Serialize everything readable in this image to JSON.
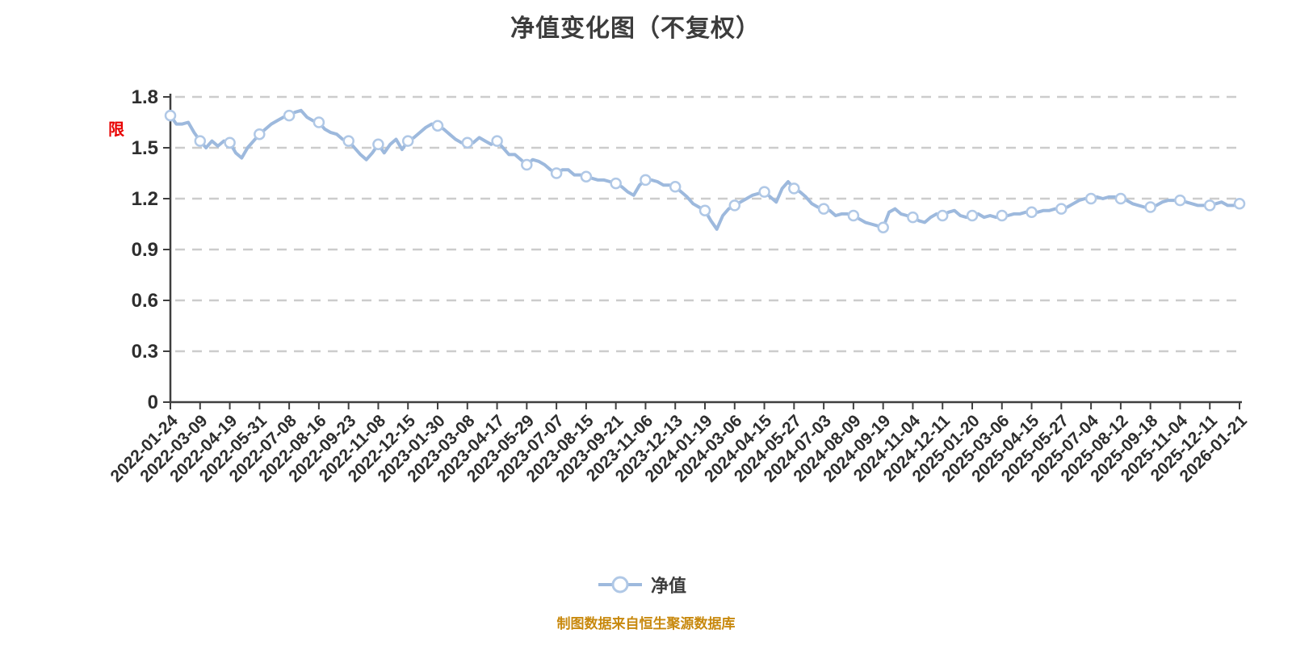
{
  "title": "净值变化图（不复权）",
  "y_axis_side_label": "限",
  "legend": {
    "series_label": "净值"
  },
  "source_note": "制图数据来自恒生聚源数据库",
  "colors": {
    "line": "#9db9dd",
    "marker_fill": "#ffffff",
    "marker_stroke": "#b0c8e6",
    "axis": "#3f3f3f",
    "grid": "#cccccc",
    "tick_label": "#2e2e2e",
    "title": "#3c3c3c",
    "side_label": "#e80000",
    "source": "#c8890e"
  },
  "chart_data": {
    "type": "line",
    "title": "净值变化图（不复权）",
    "xlabel": "",
    "ylabel": "",
    "ylim": [
      0,
      1.8
    ],
    "y_ticks": [
      0,
      0.3,
      0.6,
      0.9,
      1.2,
      1.5,
      1.8
    ],
    "y_tick_labels": [
      "0",
      "0.3",
      "0.6",
      "0.9",
      "1.2",
      "1.5",
      "1.8"
    ],
    "grid": "horizontal-dashed",
    "legend_position": "bottom-center",
    "x_tick_labels": [
      "2022-01-24",
      "2022-03-09",
      "2022-04-19",
      "2022-05-31",
      "2022-07-08",
      "2022-08-16",
      "2022-09-23",
      "2022-11-08",
      "2022-12-15",
      "2023-01-30",
      "2023-03-08",
      "2023-04-17",
      "2023-05-29",
      "2023-07-07",
      "2023-08-15",
      "2023-09-21",
      "2023-11-06",
      "2023-12-13",
      "2024-01-19",
      "2024-03-06",
      "2024-04-15",
      "2024-05-27",
      "2024-07-03",
      "2024-08-09",
      "2024-09-19",
      "2024-11-04",
      "2024-12-11",
      "2025-01-20",
      "2025-03-06",
      "2025-04-15",
      "2025-05-27",
      "2025-07-04",
      "2025-08-12",
      "2025-09-18",
      "2025-11-04",
      "2025-12-11",
      "2026-01-21"
    ],
    "marker_every": 5,
    "tick_point_values": [
      1.69,
      1.54,
      1.53,
      1.58,
      1.69,
      1.65,
      1.54,
      1.52,
      1.54,
      1.63,
      1.53,
      1.54,
      1.4,
      1.35,
      1.33,
      1.29,
      1.31,
      1.27,
      1.13,
      1.16,
      1.24,
      1.26,
      1.14,
      1.1,
      1.03,
      1.09,
      1.1,
      1.1,
      1.1,
      1.12,
      1.14,
      1.2,
      1.2,
      1.15,
      1.19,
      1.16,
      1.17
    ],
    "series": [
      {
        "name": "净值",
        "values": [
          1.69,
          1.64,
          1.64,
          1.65,
          1.59,
          1.54,
          1.5,
          1.54,
          1.51,
          1.54,
          1.53,
          1.47,
          1.44,
          1.5,
          1.54,
          1.58,
          1.61,
          1.64,
          1.66,
          1.68,
          1.69,
          1.71,
          1.72,
          1.68,
          1.66,
          1.65,
          1.61,
          1.59,
          1.58,
          1.55,
          1.54,
          1.5,
          1.46,
          1.43,
          1.47,
          1.52,
          1.47,
          1.52,
          1.55,
          1.49,
          1.54,
          1.56,
          1.59,
          1.62,
          1.64,
          1.63,
          1.61,
          1.58,
          1.55,
          1.53,
          1.53,
          1.53,
          1.56,
          1.54,
          1.52,
          1.54,
          1.5,
          1.46,
          1.46,
          1.43,
          1.4,
          1.43,
          1.42,
          1.4,
          1.37,
          1.35,
          1.37,
          1.37,
          1.34,
          1.34,
          1.33,
          1.32,
          1.31,
          1.31,
          1.3,
          1.29,
          1.27,
          1.24,
          1.22,
          1.28,
          1.31,
          1.31,
          1.3,
          1.28,
          1.28,
          1.27,
          1.24,
          1.21,
          1.17,
          1.15,
          1.13,
          1.07,
          1.02,
          1.1,
          1.14,
          1.16,
          1.18,
          1.2,
          1.22,
          1.23,
          1.24,
          1.21,
          1.18,
          1.26,
          1.3,
          1.26,
          1.24,
          1.21,
          1.17,
          1.15,
          1.14,
          1.13,
          1.1,
          1.11,
          1.11,
          1.1,
          1.08,
          1.06,
          1.05,
          1.04,
          1.03,
          1.12,
          1.14,
          1.11,
          1.1,
          1.09,
          1.07,
          1.06,
          1.09,
          1.11,
          1.1,
          1.12,
          1.13,
          1.1,
          1.09,
          1.1,
          1.11,
          1.09,
          1.1,
          1.09,
          1.1,
          1.1,
          1.11,
          1.11,
          1.12,
          1.12,
          1.12,
          1.13,
          1.13,
          1.14,
          1.14,
          1.15,
          1.17,
          1.19,
          1.2,
          1.2,
          1.21,
          1.2,
          1.21,
          1.21,
          1.2,
          1.19,
          1.17,
          1.16,
          1.15,
          1.15,
          1.16,
          1.18,
          1.19,
          1.19,
          1.19,
          1.18,
          1.17,
          1.16,
          1.16,
          1.16,
          1.17,
          1.18,
          1.16,
          1.16,
          1.17
        ]
      }
    ]
  }
}
